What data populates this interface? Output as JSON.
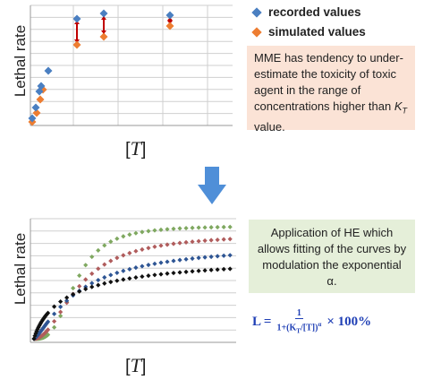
{
  "colors": {
    "recorded": "#4a7fc1",
    "simulated": "#ed7d31",
    "arrow": "#c00000",
    "grid": "#cfcfcf",
    "down_arrow": "#4f8fd8",
    "series_green": "#7fa860",
    "series_red": "#b05c5c",
    "series_blue": "#2e5594",
    "series_black": "#111111"
  },
  "top_chart": {
    "ylabel": "Lethal rate",
    "xlabel_prefix": "[",
    "xlabel_var": "T",
    "xlabel_suffix": "]"
  },
  "legend": {
    "recorded_label": "recorded values",
    "simulated_label": "simulated values"
  },
  "note_mme": {
    "text_main": "MME has tendency to under- estimate the toxicity of toxic agent in the range of concentrations higher than ",
    "k_symbol": "K",
    "k_subscript": "T",
    "text_tail": " value."
  },
  "arrow_icon": "down-arrow-icon",
  "bottom_chart": {
    "ylabel": "Lethal rate",
    "xlabel_prefix": "[",
    "xlabel_var": "T",
    "xlabel_suffix": "]"
  },
  "note_he": {
    "text": "Application of HE which allows fitting of the curves by modulation the exponential α."
  },
  "formula": {
    "lhs": "L =",
    "numerator": "1",
    "denominator": "1+(K",
    "denominator_sub": "T",
    "denominator_tail": "/[T])",
    "denominator_exp": "α",
    "times": "× 100%"
  },
  "chart_data": [
    {
      "type": "scatter",
      "series": [
        {
          "name": "recorded values",
          "x": [
            0.3,
            0.6,
            1.0,
            1.3,
            2.0,
            6.5,
            9.5,
            18.0
          ],
          "y": [
            0.05,
            0.15,
            0.3,
            0.48,
            0.68,
            1.0,
            1.02,
            1.02
          ]
        },
        {
          "name": "simulated values",
          "x": [
            0.3,
            0.6,
            1.0,
            1.3,
            6.5,
            9.5,
            18.0
          ],
          "y": [
            0.02,
            0.12,
            0.22,
            0.35,
            0.68,
            0.78,
            0.88
          ]
        }
      ]
    },
    {
      "type": "scatter",
      "series": [
        {
          "name": "",
          "points": "green"
        },
        {
          "name": "",
          "points": "red"
        },
        {
          "name": "",
          "points": "blue"
        },
        {
          "name": "",
          "points": "black"
        }
      ]
    }
  ]
}
